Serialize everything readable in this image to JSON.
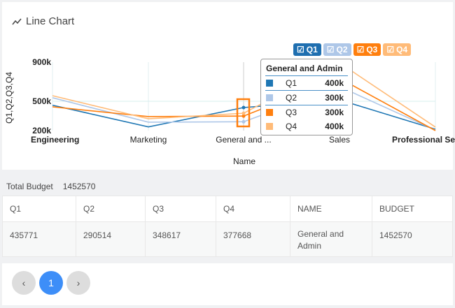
{
  "title": "Line Chart",
  "chart_data": {
    "type": "line",
    "title": "Line Chart",
    "xlabel": "Name",
    "ylabel": "Q1,Q2,Q3,Q4",
    "categories": [
      "Engineering",
      "Marketing",
      "General and ...",
      "Sales",
      "Professional Se"
    ],
    "yticks": [
      "900k",
      "500k",
      "200k"
    ],
    "ylim": [
      200000,
      900000
    ],
    "grid": true,
    "legend_position": "top-right",
    "series": [
      {
        "name": "Q1",
        "color": "#1f77b4",
        "values": [
          460000,
          238000,
          435771,
          514000,
          214000
        ]
      },
      {
        "name": "Q2",
        "color": "#aec7e8",
        "values": [
          536000,
          286000,
          290514,
          650000,
          205000
        ]
      },
      {
        "name": "Q3",
        "color": "#ff7f0e",
        "values": [
          443000,
          343000,
          348617,
          735000,
          200000
        ]
      },
      {
        "name": "Q4",
        "color": "#ffbb78",
        "values": [
          557000,
          321000,
          377668,
          893000,
          236000
        ]
      }
    ],
    "tooltip": {
      "title": "General and Admin",
      "rows": [
        {
          "name": "Q1",
          "value": "400k"
        },
        {
          "name": "Q2",
          "value": "300k"
        },
        {
          "name": "Q3",
          "value": "300k"
        },
        {
          "name": "Q4",
          "value": "400k"
        }
      ]
    }
  },
  "total": {
    "label": "Total Budget",
    "value": "1452570"
  },
  "table": {
    "headers": [
      "Q1",
      "Q2",
      "Q3",
      "Q4",
      "NAME",
      "BUDGET"
    ],
    "rows": [
      [
        "435771",
        "290514",
        "348617",
        "377668",
        "General and Admin",
        "1452570"
      ]
    ]
  },
  "pager": {
    "prev": "‹",
    "page": "1",
    "next": "›",
    "active_color": "#3d8ef8"
  }
}
